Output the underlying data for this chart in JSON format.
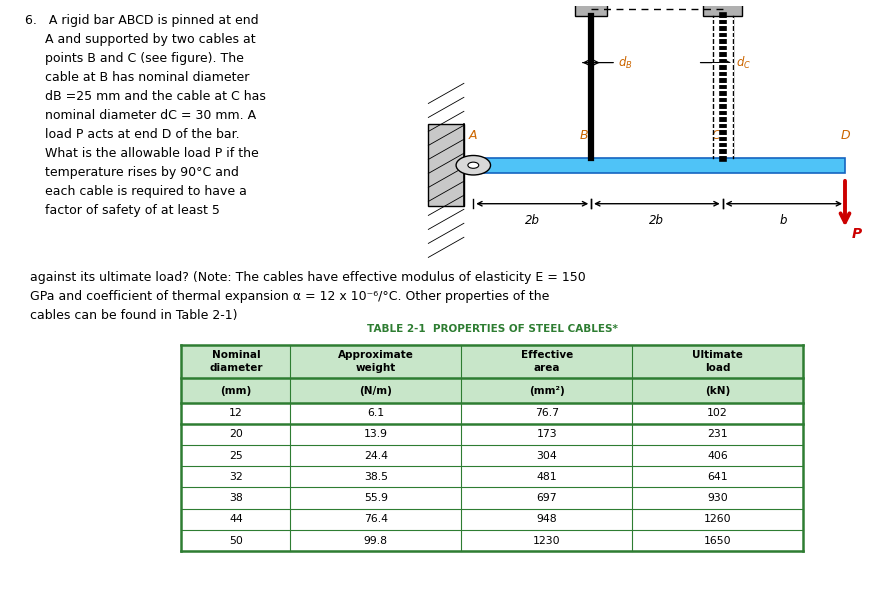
{
  "problem_text": "6.   A rigid bar ABCD is pinned at end\n     A and supported by two cables at\n     points B and C (see figure). The\n     cable at B has nominal diameter\n     dB =25 mm and the cable at C has\n     nominal diameter dC = 30 mm. A\n     load P acts at end D of the bar.\n     What is the allowable load P if the\n     temperature rises by 90°C and\n     each cable is required to have a\n     factor of safety of at least 5",
  "continuation_text": "against its ultimate load? (Note: The cables have effective modulus of elasticity E = 150\nGPa and coefficient of thermal expansion α = 12 x 10⁻⁶/°C. Other properties of the\ncables can be found in Table 2-1)",
  "table_title": "TABLE 2-1  PROPERTIES OF STEEL CABLES*",
  "table_headers_row1": [
    "Nominal\ndiameter",
    "Approximate\nweight",
    "Effective\narea",
    "Ultimate\nload"
  ],
  "table_headers_row2": [
    "(mm)",
    "(N/m)",
    "(mm²)",
    "(kN)"
  ],
  "table_data": [
    [
      "12",
      "6.1",
      "76.7",
      "102"
    ],
    [
      "20",
      "13.9",
      "173",
      "231"
    ],
    [
      "25",
      "24.4",
      "304",
      "406"
    ],
    [
      "32",
      "38.5",
      "481",
      "641"
    ],
    [
      "38",
      "55.9",
      "697",
      "930"
    ],
    [
      "44",
      "76.4",
      "948",
      "1260"
    ],
    [
      "50",
      "99.8",
      "1230",
      "1650"
    ]
  ],
  "table_header_bg": "#c8e6c9",
  "table_border_color": "#2e7d32",
  "bg_color": "#ffffff",
  "bar_color": "#4fc3f7",
  "arrow_color": "#cc0000",
  "label_color_orange": "#cc6600",
  "text_fontsize": 9.0,
  "table_title_fontsize": 7.5,
  "table_header_fontsize": 7.5,
  "table_data_fontsize": 7.8
}
